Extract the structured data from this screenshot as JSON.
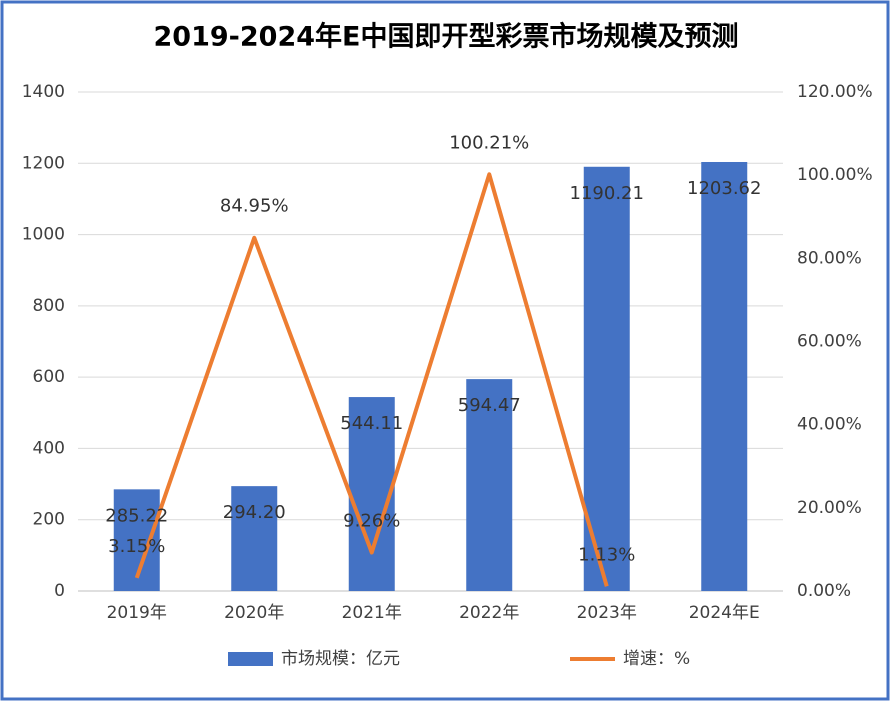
{
  "chart_data": {
    "type": "bar",
    "title": "2019-2024年E中国即开型彩票市场规模及预测",
    "categories": [
      "2019年",
      "2020年",
      "2021年",
      "2022年",
      "2023年",
      "2024年E"
    ],
    "series": [
      {
        "name": "市场规模：亿元",
        "type": "bar",
        "color": "#4472c4",
        "values": [
          285.22,
          294.2,
          544.11,
          594.47,
          1190.21,
          1203.62
        ],
        "value_labels": [
          "285.22",
          "294.20",
          "544.11",
          "594.47",
          "1190.21",
          "1203.62"
        ]
      },
      {
        "name": "增速：%",
        "type": "line",
        "axis": "y2",
        "color": "#ed7d31",
        "values": [
          3.15,
          84.95,
          9.26,
          100.21,
          1.13,
          null
        ],
        "value_labels": [
          "3.15%",
          "84.95%",
          "9.26%",
          "100.21%",
          "1.13%",
          null
        ]
      }
    ],
    "ylim": [
      0,
      1400
    ],
    "yticks": [
      0,
      200,
      400,
      600,
      800,
      1000,
      1200,
      1400
    ],
    "y2lim": [
      0,
      120
    ],
    "y2ticks": [
      {
        "value": 0,
        "label": "0.00%"
      },
      {
        "value": 20,
        "label": "20.00%"
      },
      {
        "value": 40,
        "label": "40.00%"
      },
      {
        "value": 60,
        "label": "60.00%"
      },
      {
        "value": 80,
        "label": "80.00%"
      },
      {
        "value": 100,
        "label": "100.00%"
      },
      {
        "value": 120,
        "label": "120.00%"
      }
    ],
    "grid": true,
    "legend": "bottom"
  }
}
